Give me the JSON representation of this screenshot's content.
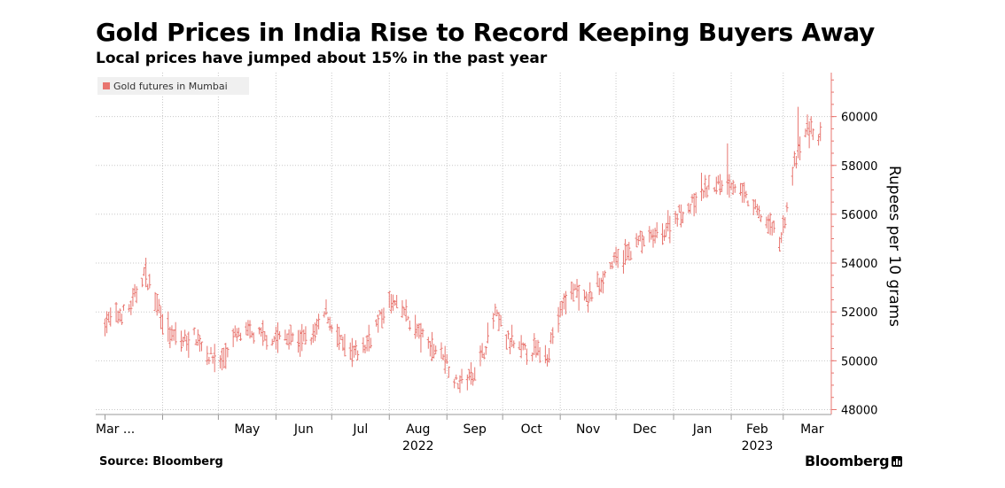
{
  "header": {
    "title": "Gold Prices in India Rise to Record Keeping Buyers Away",
    "subtitle": "Local prices have jumped about 15% in the past year"
  },
  "footer": {
    "source": "Source: Bloomberg",
    "brand": "Bloomberg",
    "brand_icon": "bar-chart-icon"
  },
  "colors": {
    "series": "#e8756f",
    "grid": "#c8c8c8",
    "axis": "#e8756f"
  },
  "chart_data": {
    "type": "line",
    "style": "ohlc-bar",
    "legend": {
      "position": "top-left",
      "entries": [
        "Gold futures in Mumbai"
      ]
    },
    "ylabel": "Rupees per 10 grams",
    "y_axis_position": "right",
    "ylim": [
      47800,
      61800
    ],
    "yticks": [
      "48000",
      "50000",
      "52000",
      "54000",
      "56000",
      "58000",
      "60000"
    ],
    "xticks": [
      "Mar ...",
      "May",
      "Jun",
      "Jul",
      "Aug",
      "Sep",
      "Oct",
      "Nov",
      "Dec",
      "Jan",
      "Feb",
      "Mar"
    ],
    "xyear_labels": [
      {
        "label": "2022",
        "under": "Aug"
      },
      {
        "label": "2023",
        "under": "Feb"
      }
    ],
    "grid": true,
    "series": [
      {
        "name": "Gold futures in Mumbai",
        "x": [
          "2022-03-01",
          "2022-03-08",
          "2022-03-15",
          "2022-03-22",
          "2022-03-29",
          "2022-04-05",
          "2022-04-12",
          "2022-04-19",
          "2022-04-26",
          "2022-05-03",
          "2022-05-10",
          "2022-05-17",
          "2022-05-24",
          "2022-05-31",
          "2022-06-07",
          "2022-06-14",
          "2022-06-21",
          "2022-06-28",
          "2022-07-05",
          "2022-07-12",
          "2022-07-19",
          "2022-07-26",
          "2022-08-02",
          "2022-08-09",
          "2022-08-16",
          "2022-08-23",
          "2022-08-30",
          "2022-09-06",
          "2022-09-13",
          "2022-09-20",
          "2022-09-27",
          "2022-10-04",
          "2022-10-11",
          "2022-10-18",
          "2022-10-25",
          "2022-11-01",
          "2022-11-08",
          "2022-11-15",
          "2022-11-22",
          "2022-11-29",
          "2022-12-06",
          "2022-12-13",
          "2022-12-20",
          "2022-12-27",
          "2023-01-03",
          "2023-01-10",
          "2023-01-17",
          "2023-01-24",
          "2023-01-31",
          "2023-02-07",
          "2023-02-14",
          "2023-02-21",
          "2023-02-28",
          "2023-03-07",
          "2023-03-14",
          "2023-03-21"
        ],
        "values": [
          51600,
          51800,
          52200,
          53600,
          52400,
          51000,
          50800,
          51000,
          50200,
          50000,
          51000,
          51100,
          51000,
          50900,
          51000,
          50800,
          51000,
          52000,
          50800,
          50200,
          50600,
          51600,
          52400,
          52000,
          51200,
          50600,
          50300,
          49100,
          49300,
          50200,
          51900,
          50800,
          50400,
          50400,
          50300,
          52000,
          53000,
          52400,
          53200,
          54000,
          54300,
          54900,
          55000,
          55300,
          56000,
          56300,
          57000,
          57200,
          57400,
          56800,
          56200,
          55600,
          55000,
          58000,
          59500,
          59200
        ]
      }
    ]
  }
}
